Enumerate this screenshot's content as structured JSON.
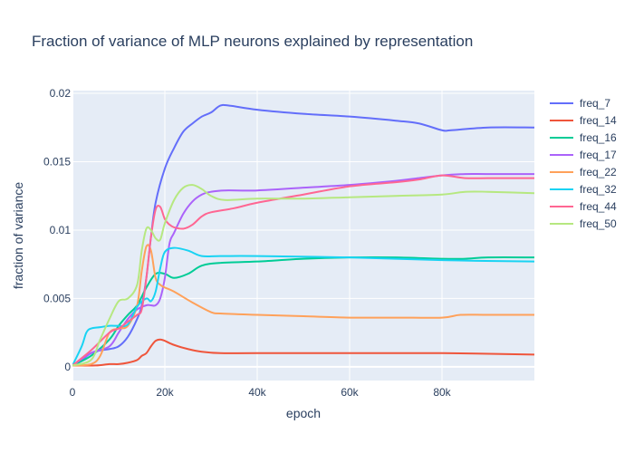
{
  "chart_data": {
    "type": "line",
    "title": "Fraction of variance of MLP neurons explained by representation",
    "xlabel": "epoch",
    "ylabel": "fraction of variance",
    "xlim": [
      0,
      100000
    ],
    "ylim": [
      -0.001,
      0.0202
    ],
    "x_ticks": [
      0,
      20000,
      40000,
      60000,
      80000
    ],
    "x_tick_labels": [
      "0",
      "20k",
      "40k",
      "60k",
      "80k"
    ],
    "y_ticks": [
      0,
      0.005,
      0.01,
      0.015,
      0.02
    ],
    "y_tick_labels": [
      "0",
      "0.005",
      "0.01",
      "0.015",
      "0.02"
    ],
    "grid": true,
    "legend_position": "right",
    "plot_background": "#e5ecf6",
    "series": [
      {
        "name": "freq_7",
        "color": "#636efa",
        "x": [
          0,
          2000,
          4000,
          6000,
          8000,
          10000,
          12000,
          14000,
          15000,
          16000,
          17000,
          18000,
          20000,
          22000,
          24000,
          26000,
          28000,
          30000,
          32000,
          34000,
          40000,
          50000,
          60000,
          70000,
          75000,
          80000,
          82000,
          90000,
          100000
        ],
        "y": [
          0.0001,
          0.0005,
          0.001,
          0.0012,
          0.0013,
          0.0015,
          0.0022,
          0.0035,
          0.0045,
          0.0065,
          0.0095,
          0.012,
          0.0145,
          0.016,
          0.0172,
          0.0178,
          0.0183,
          0.0186,
          0.0191,
          0.0191,
          0.0188,
          0.0185,
          0.0183,
          0.018,
          0.0178,
          0.0173,
          0.0173,
          0.0175,
          0.0175
        ]
      },
      {
        "name": "freq_14",
        "color": "#ef553b",
        "x": [
          0,
          5000,
          8000,
          10000,
          12000,
          14000,
          15000,
          16000,
          17000,
          18000,
          19000,
          20000,
          22000,
          25000,
          28000,
          32000,
          40000,
          60000,
          80000,
          100000
        ],
        "y": [
          0.0001,
          0.0001,
          0.0002,
          0.0002,
          0.0003,
          0.0005,
          0.0008,
          0.001,
          0.0015,
          0.0019,
          0.002,
          0.0019,
          0.0016,
          0.0013,
          0.0011,
          0.001,
          0.001,
          0.001,
          0.001,
          0.0009
        ]
      },
      {
        "name": "freq_16",
        "color": "#00cc96",
        "x": [
          0,
          4000,
          8000,
          10000,
          12000,
          14000,
          16000,
          18000,
          20000,
          22000,
          25000,
          28000,
          32000,
          40000,
          50000,
          60000,
          70000,
          80000,
          85000,
          90000,
          100000
        ],
        "y": [
          0.0001,
          0.0008,
          0.002,
          0.003,
          0.0038,
          0.0045,
          0.0058,
          0.0068,
          0.0068,
          0.0065,
          0.0068,
          0.0074,
          0.0076,
          0.0077,
          0.0079,
          0.008,
          0.008,
          0.0079,
          0.0079,
          0.008,
          0.008
        ]
      },
      {
        "name": "freq_17",
        "color": "#ab63fa",
        "x": [
          0,
          4000,
          8000,
          10000,
          12000,
          14000,
          16000,
          17000,
          18000,
          19000,
          20000,
          21000,
          22000,
          24000,
          26000,
          28000,
          30000,
          33000,
          40000,
          50000,
          60000,
          70000,
          75000,
          80000,
          85000,
          90000,
          100000
        ],
        "y": [
          0.0001,
          0.001,
          0.0015,
          0.0025,
          0.0035,
          0.0042,
          0.0045,
          0.0045,
          0.0045,
          0.005,
          0.0065,
          0.009,
          0.0098,
          0.0112,
          0.0121,
          0.0126,
          0.0128,
          0.0129,
          0.0129,
          0.0131,
          0.0133,
          0.0136,
          0.0138,
          0.014,
          0.0141,
          0.0141,
          0.0141
        ]
      },
      {
        "name": "freq_22",
        "color": "#ffa15a",
        "x": [
          0,
          4000,
          6000,
          8000,
          10000,
          12000,
          14000,
          15000,
          16000,
          17000,
          18000,
          19000,
          20000,
          22000,
          26000,
          30000,
          32000,
          40000,
          50000,
          60000,
          70000,
          80000,
          84000,
          90000,
          100000
        ],
        "y": [
          0.0001,
          0.0002,
          0.0008,
          0.0025,
          0.0028,
          0.003,
          0.0045,
          0.007,
          0.0088,
          0.0085,
          0.0065,
          0.006,
          0.0058,
          0.0055,
          0.0047,
          0.004,
          0.0039,
          0.0038,
          0.0037,
          0.0036,
          0.0036,
          0.0036,
          0.0038,
          0.0038,
          0.0038
        ]
      },
      {
        "name": "freq_32",
        "color": "#19d3f3",
        "x": [
          0,
          2000,
          3000,
          4000,
          6000,
          8000,
          10000,
          12000,
          14000,
          16000,
          17000,
          18000,
          19000,
          20000,
          22000,
          25000,
          28000,
          32000,
          40000,
          60000,
          80000,
          100000
        ],
        "y": [
          0.0001,
          0.0015,
          0.0025,
          0.0028,
          0.0029,
          0.003,
          0.003,
          0.0031,
          0.0044,
          0.005,
          0.0048,
          0.0055,
          0.0072,
          0.0084,
          0.0087,
          0.0085,
          0.0081,
          0.0081,
          0.0081,
          0.008,
          0.0078,
          0.0077
        ]
      },
      {
        "name": "freq_44",
        "color": "#ff6692",
        "x": [
          0,
          4000,
          8000,
          10000,
          12000,
          14000,
          15000,
          16000,
          17000,
          18000,
          19000,
          20000,
          21000,
          22000,
          24000,
          26000,
          28000,
          30000,
          35000,
          40000,
          50000,
          60000,
          70000,
          75000,
          80000,
          85000,
          90000,
          100000
        ],
        "y": [
          0.0001,
          0.0012,
          0.0025,
          0.0028,
          0.0033,
          0.0038,
          0.0042,
          0.0065,
          0.0095,
          0.0115,
          0.0117,
          0.0108,
          0.0104,
          0.0102,
          0.0101,
          0.0104,
          0.011,
          0.0113,
          0.0116,
          0.012,
          0.0126,
          0.0132,
          0.0135,
          0.0137,
          0.014,
          0.0138,
          0.0138,
          0.0138
        ]
      },
      {
        "name": "freq_50",
        "color": "#b6e880",
        "x": [
          0,
          4000,
          6000,
          8000,
          10000,
          12000,
          14000,
          15000,
          16000,
          17000,
          18000,
          19000,
          20000,
          22000,
          24000,
          26000,
          28000,
          30000,
          33000,
          40000,
          50000,
          60000,
          70000,
          80000,
          85000,
          90000,
          100000
        ],
        "y": [
          0.0001,
          0.0005,
          0.002,
          0.0035,
          0.0048,
          0.005,
          0.006,
          0.0085,
          0.0101,
          0.01,
          0.0094,
          0.0093,
          0.0105,
          0.0122,
          0.0131,
          0.0133,
          0.013,
          0.0125,
          0.0122,
          0.0123,
          0.0123,
          0.0124,
          0.0125,
          0.0126,
          0.0128,
          0.0128,
          0.0127
        ]
      }
    ]
  }
}
